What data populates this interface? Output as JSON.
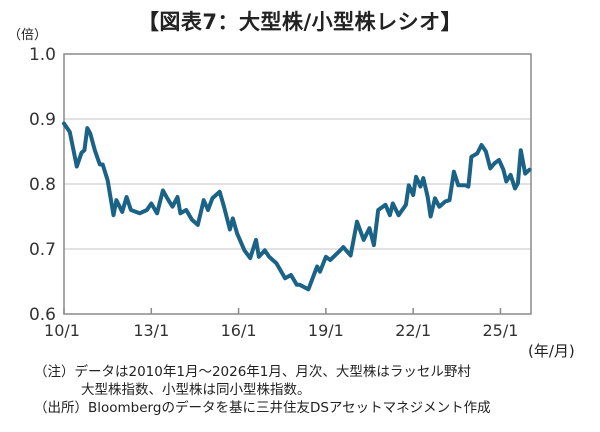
{
  "title": "【図表7：大型株/小型株レシオ】",
  "notes": [
    "（注）データは2010年1月～2026年1月、月次、大型株はラッセル野村",
    "大型株指数、小型株は同小型株指数。",
    "（出所）Bloombergのデータを基に三井住友DSアセットマネジメント作成"
  ],
  "chart_data": {
    "type": "line",
    "title": "【図表7：大型株/小型株レシオ】",
    "ylabel": "（倍）",
    "xlabel": "(年/月)",
    "ylim": [
      0.6,
      1.0
    ],
    "xlim": [
      2010.0,
      2026.05
    ],
    "yticks": [
      1.0,
      0.9,
      0.8,
      0.7,
      0.6
    ],
    "ytick_labels": [
      "1.0",
      "0.9",
      "0.8",
      "0.7",
      "0.6"
    ],
    "xticks": [
      2010,
      2013,
      2016,
      2019,
      2022,
      2025
    ],
    "xtick_labels": [
      "10/1",
      "13/1",
      "16/1",
      "19/1",
      "22/1",
      "25/1"
    ],
    "grid": "horizontal",
    "line_color": "#1b6386",
    "series": [
      {
        "name": "大型株/小型株レシオ",
        "x": [
          2010.0,
          2010.2,
          2010.44,
          2010.6,
          2010.7,
          2010.8,
          2010.9,
          2011.06,
          2011.23,
          2011.33,
          2011.5,
          2011.7,
          2011.8,
          2012.0,
          2012.15,
          2012.3,
          2012.6,
          2012.85,
          2013.0,
          2013.2,
          2013.4,
          2013.55,
          2013.73,
          2013.9,
          2014.0,
          2014.2,
          2014.4,
          2014.6,
          2014.8,
          2014.95,
          2015.1,
          2015.35,
          2015.5,
          2015.7,
          2015.8,
          2015.95,
          2016.2,
          2016.4,
          2016.6,
          2016.7,
          2016.9,
          2017.05,
          2017.3,
          2017.6,
          2017.8,
          2018.0,
          2018.1,
          2018.4,
          2018.7,
          2018.8,
          2019.0,
          2019.15,
          2019.45,
          2019.6,
          2019.85,
          2020.07,
          2020.3,
          2020.5,
          2020.65,
          2020.8,
          2021.05,
          2021.2,
          2021.3,
          2021.5,
          2021.75,
          2021.85,
          2022.0,
          2022.1,
          2022.25,
          2022.35,
          2022.5,
          2022.6,
          2022.75,
          2022.9,
          2023.1,
          2023.25,
          2023.4,
          2023.55,
          2023.8,
          2023.9,
          2024.0,
          2024.2,
          2024.35,
          2024.5,
          2024.65,
          2024.8,
          2024.95,
          2025.1,
          2025.2,
          2025.35,
          2025.5,
          2025.6,
          2025.7,
          2025.85,
          2026.0
        ],
        "y": [
          0.893,
          0.88,
          0.827,
          0.848,
          0.852,
          0.886,
          0.878,
          0.852,
          0.83,
          0.83,
          0.806,
          0.752,
          0.775,
          0.757,
          0.78,
          0.76,
          0.755,
          0.76,
          0.77,
          0.755,
          0.79,
          0.778,
          0.765,
          0.78,
          0.755,
          0.76,
          0.745,
          0.737,
          0.775,
          0.76,
          0.778,
          0.788,
          0.765,
          0.73,
          0.747,
          0.724,
          0.698,
          0.686,
          0.714,
          0.688,
          0.698,
          0.688,
          0.678,
          0.655,
          0.66,
          0.645,
          0.645,
          0.638,
          0.673,
          0.665,
          0.688,
          0.683,
          0.696,
          0.703,
          0.69,
          0.742,
          0.714,
          0.732,
          0.706,
          0.76,
          0.768,
          0.752,
          0.77,
          0.752,
          0.768,
          0.798,
          0.783,
          0.811,
          0.796,
          0.809,
          0.78,
          0.75,
          0.778,
          0.765,
          0.773,
          0.775,
          0.819,
          0.798,
          0.798,
          0.796,
          0.842,
          0.847,
          0.86,
          0.85,
          0.824,
          0.832,
          0.837,
          0.822,
          0.804,
          0.814,
          0.793,
          0.801,
          0.852,
          0.816,
          0.822
        ]
      }
    ]
  }
}
